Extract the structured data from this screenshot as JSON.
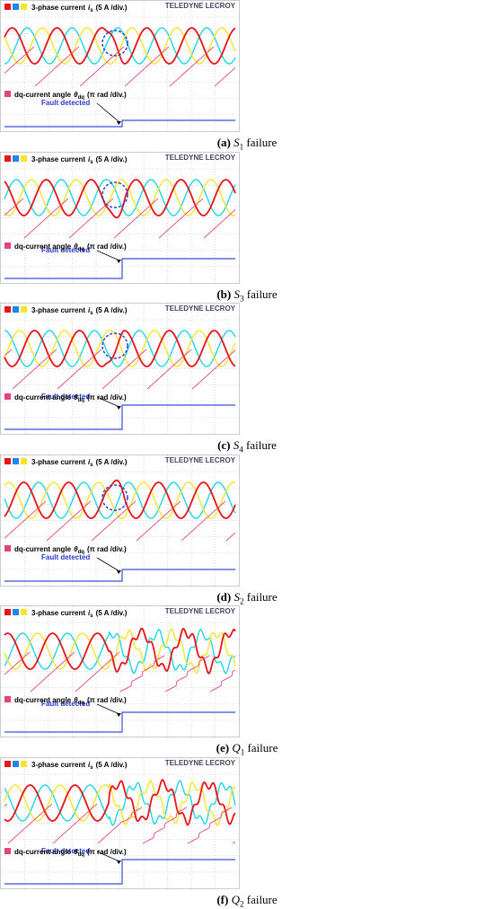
{
  "legend_current": {
    "label": "3-phase current",
    "symbol": "i",
    "subscript": "s",
    "scale": "(5 A /div.)"
  },
  "legend_angle": {
    "label": "dq-current angle",
    "symbol": "θ",
    "subscript": "dq",
    "scale": "(π rad /div.)"
  },
  "fault_label": "Fault detected",
  "logo": "TELEDYNE LECROY",
  "panels": [
    {
      "letter": "(a)",
      "switch": "S",
      "subscript": "1",
      "suffix": "failure"
    },
    {
      "letter": "(b)",
      "switch": "S",
      "subscript": "3",
      "suffix": "failure"
    },
    {
      "letter": "(c)",
      "switch": "S",
      "subscript": "4",
      "suffix": "failure"
    },
    {
      "letter": "(d)",
      "switch": "S",
      "subscript": "2",
      "suffix": "failure"
    },
    {
      "letter": "(e)",
      "switch": "Q",
      "subscript": "1",
      "suffix": "failure"
    },
    {
      "letter": "(f)",
      "switch": "Q",
      "subscript": "2",
      "suffix": "failure"
    }
  ]
}
